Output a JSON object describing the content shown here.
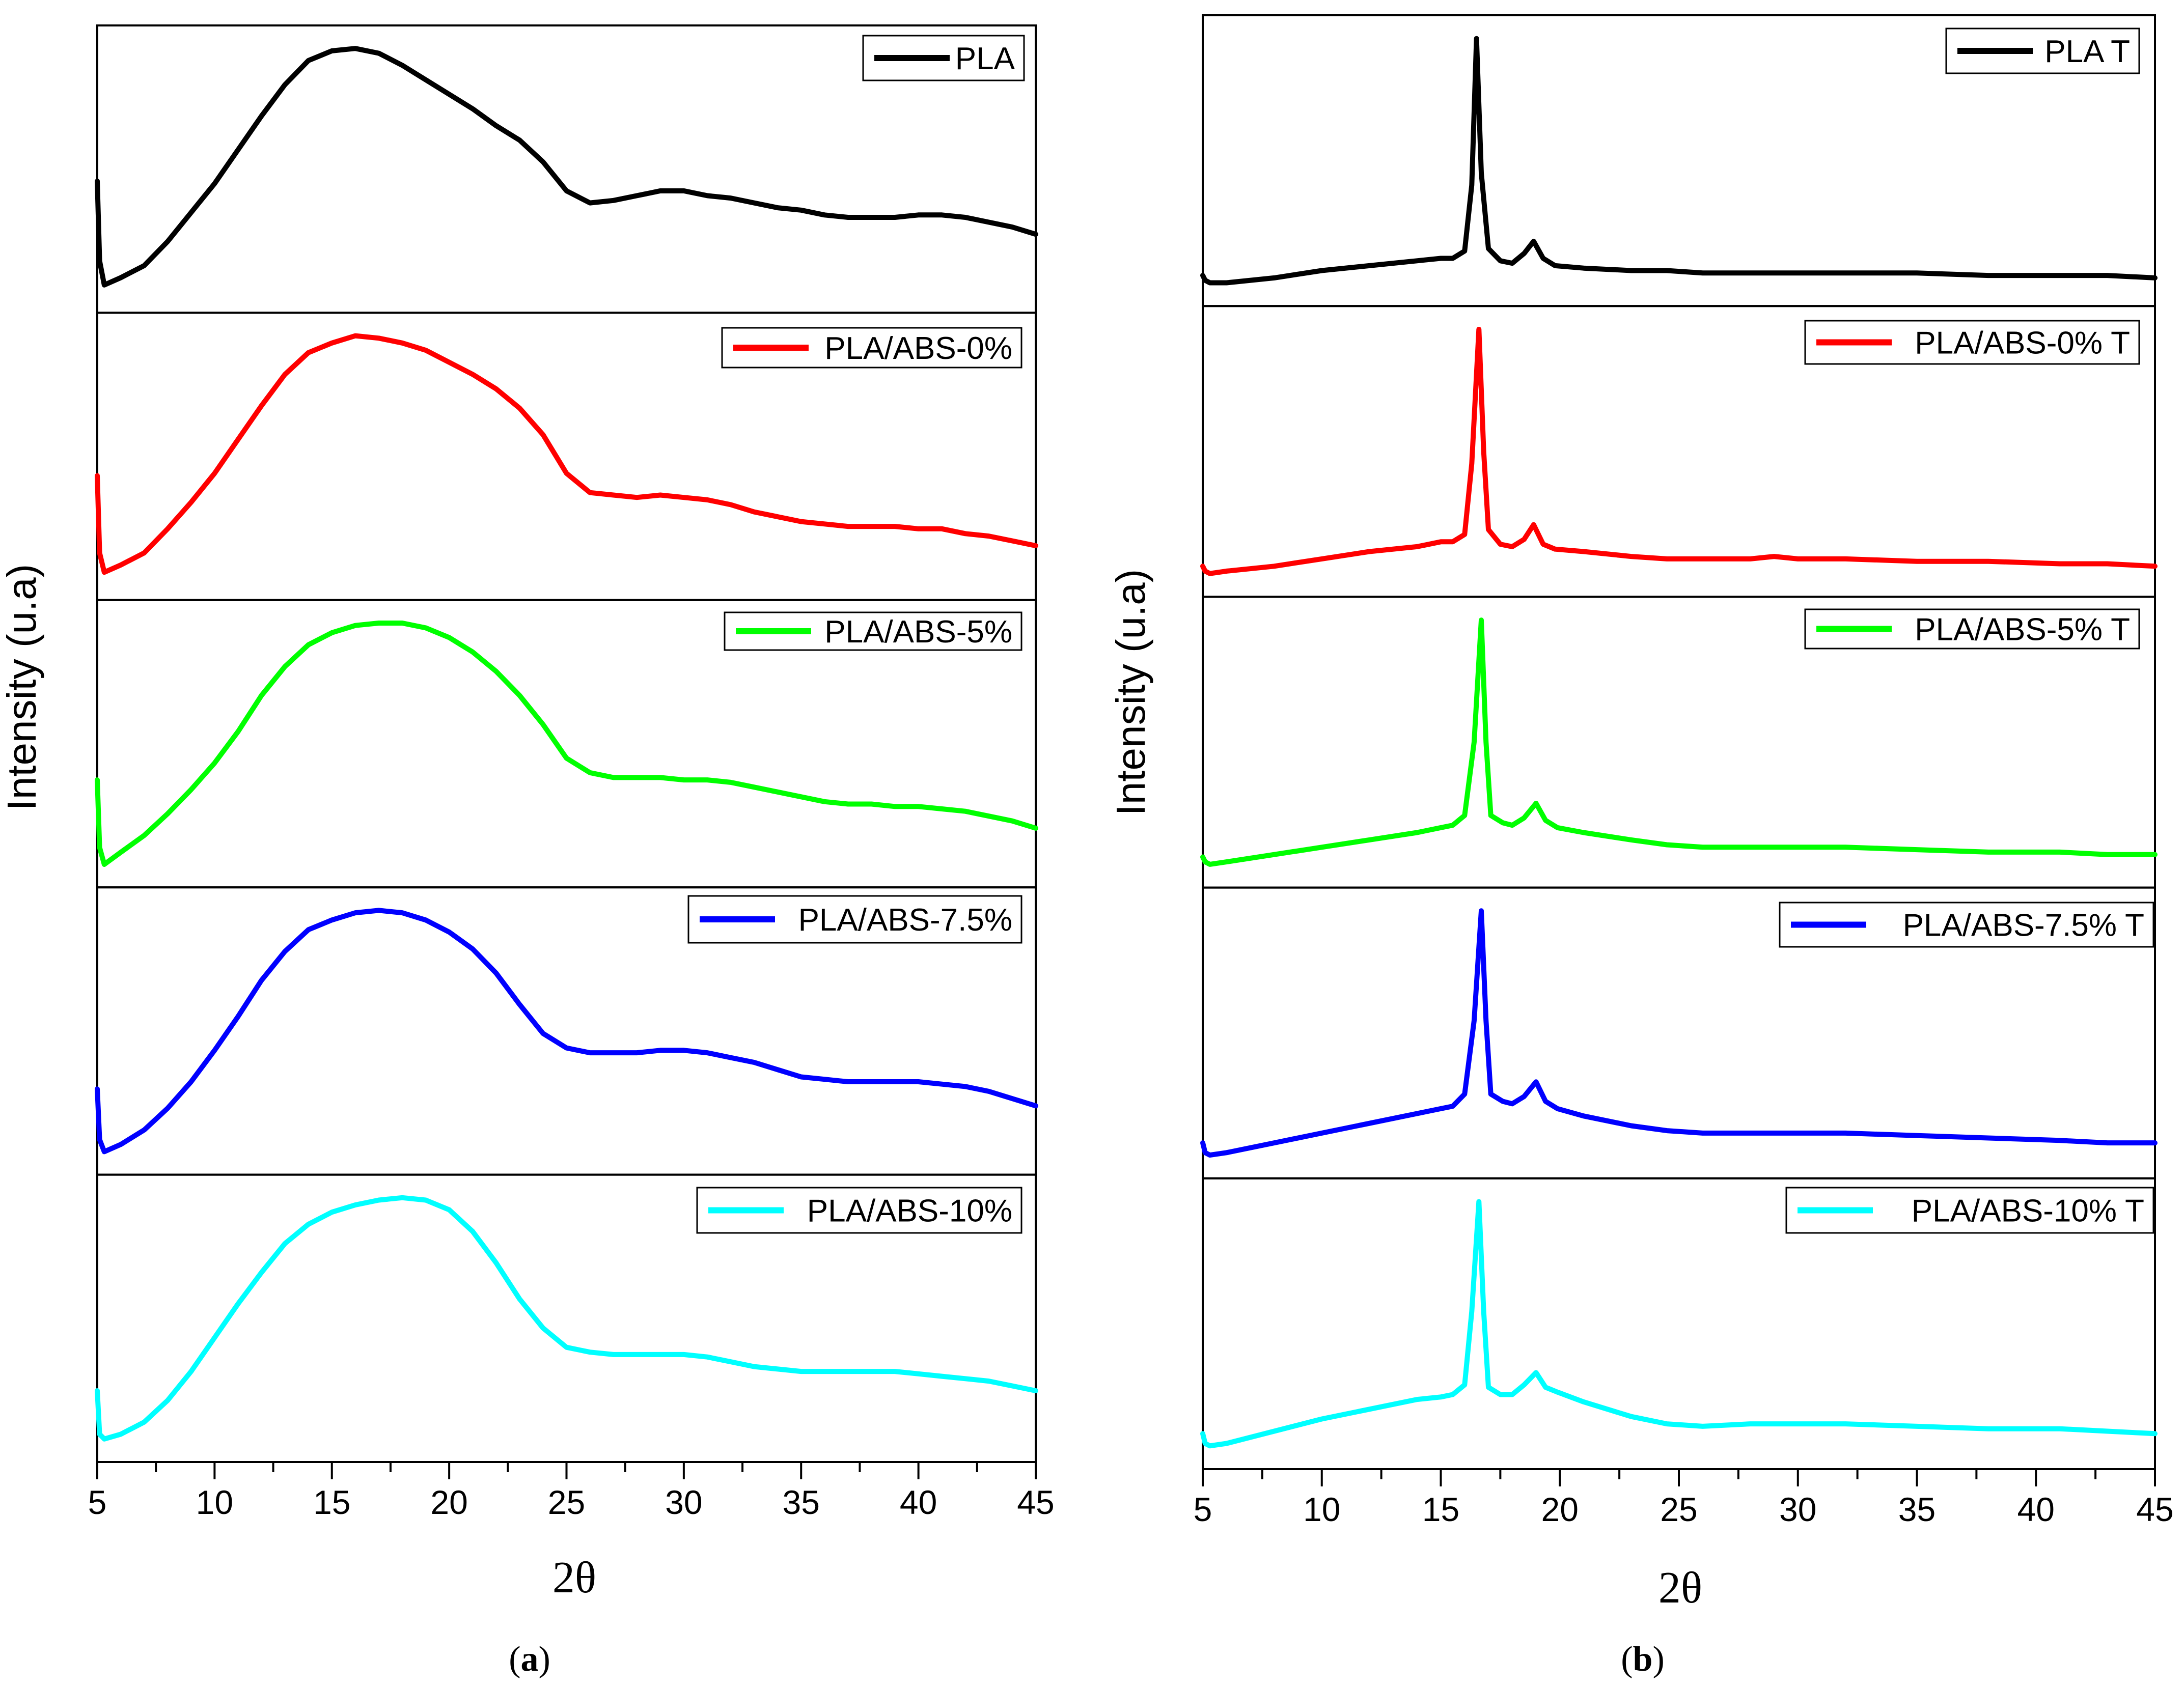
{
  "chart_data": [
    {
      "type": "line",
      "panel_id": "a",
      "panel_label": "(a)",
      "panel_label_letter": "a",
      "xlabel": "2θ",
      "ylabel": "Intensity (u.a)",
      "xlim": [
        5,
        45
      ],
      "xticks": [
        5,
        10,
        15,
        20,
        25,
        30,
        35,
        40,
        45
      ],
      "tick_labels": [
        "5",
        "10",
        "15",
        "20",
        "25",
        "30",
        "35",
        "40",
        "45"
      ],
      "minor_tick_step": 2.5,
      "legend_position": "top-right of each stacked sub-panel",
      "series": [
        {
          "name": "PLA",
          "color": "#000000",
          "x": [
            5.0,
            5.1,
            5.3,
            6.0,
            7.0,
            8.0,
            9.0,
            10.0,
            11.0,
            12.0,
            13.0,
            14.0,
            15.0,
            16.0,
            17.0,
            18.0,
            19.0,
            20.0,
            21.0,
            22.0,
            23.0,
            24.0,
            25.0,
            26.0,
            27.0,
            28.0,
            29.0,
            30.0,
            31.0,
            32.0,
            33.0,
            34.0,
            35.0,
            36.0,
            37.0,
            38.0,
            39.0,
            40.0,
            41.0,
            42.0,
            43.0,
            44.0,
            45.0
          ],
          "y": [
            0.45,
            0.12,
            0.02,
            0.05,
            0.1,
            0.2,
            0.32,
            0.44,
            0.58,
            0.72,
            0.85,
            0.95,
            0.99,
            1.0,
            0.98,
            0.93,
            0.87,
            0.81,
            0.75,
            0.68,
            0.62,
            0.53,
            0.41,
            0.36,
            0.37,
            0.39,
            0.41,
            0.41,
            0.39,
            0.38,
            0.36,
            0.34,
            0.33,
            0.31,
            0.3,
            0.3,
            0.3,
            0.31,
            0.31,
            0.3,
            0.28,
            0.26,
            0.23
          ]
        },
        {
          "name": "PLA/ABS-0%",
          "color": "#ff0000",
          "x": [
            5.0,
            5.1,
            5.3,
            6.0,
            7.0,
            8.0,
            9.0,
            10.0,
            11.0,
            12.0,
            13.0,
            14.0,
            15.0,
            16.0,
            17.0,
            18.0,
            19.0,
            20.0,
            21.0,
            22.0,
            23.0,
            24.0,
            25.0,
            26.0,
            27.0,
            28.0,
            29.0,
            30.0,
            31.0,
            32.0,
            33.0,
            34.0,
            35.0,
            36.0,
            37.0,
            38.0,
            39.0,
            40.0,
            41.0,
            42.0,
            43.0,
            44.0,
            45.0
          ],
          "y": [
            0.42,
            0.1,
            0.02,
            0.05,
            0.1,
            0.2,
            0.31,
            0.43,
            0.57,
            0.71,
            0.84,
            0.93,
            0.97,
            1.0,
            0.99,
            0.97,
            0.94,
            0.89,
            0.84,
            0.78,
            0.7,
            0.59,
            0.43,
            0.35,
            0.34,
            0.33,
            0.34,
            0.33,
            0.32,
            0.3,
            0.27,
            0.25,
            0.23,
            0.22,
            0.21,
            0.21,
            0.21,
            0.2,
            0.2,
            0.18,
            0.17,
            0.15,
            0.13
          ]
        },
        {
          "name": "PLA/ABS-5%",
          "color": "#00ff00",
          "x": [
            5.0,
            5.1,
            5.3,
            6.0,
            7.0,
            8.0,
            9.0,
            10.0,
            11.0,
            12.0,
            13.0,
            14.0,
            15.0,
            16.0,
            17.0,
            18.0,
            19.0,
            20.0,
            21.0,
            22.0,
            23.0,
            24.0,
            25.0,
            26.0,
            27.0,
            28.0,
            29.0,
            30.0,
            31.0,
            32.0,
            33.0,
            34.0,
            35.0,
            36.0,
            37.0,
            38.0,
            39.0,
            40.0,
            41.0,
            42.0,
            43.0,
            44.0,
            45.0
          ],
          "y": [
            0.35,
            0.07,
            0.0,
            0.05,
            0.12,
            0.21,
            0.31,
            0.42,
            0.55,
            0.7,
            0.82,
            0.91,
            0.96,
            0.99,
            1.0,
            1.0,
            0.98,
            0.94,
            0.88,
            0.8,
            0.7,
            0.58,
            0.44,
            0.38,
            0.36,
            0.36,
            0.36,
            0.35,
            0.35,
            0.34,
            0.32,
            0.3,
            0.28,
            0.26,
            0.25,
            0.25,
            0.24,
            0.24,
            0.23,
            0.22,
            0.2,
            0.18,
            0.15
          ]
        },
        {
          "name": "PLA/ABS-7.5%",
          "color": "#0000ff",
          "x": [
            5.0,
            5.1,
            5.3,
            6.0,
            7.0,
            8.0,
            9.0,
            10.0,
            11.0,
            12.0,
            13.0,
            14.0,
            15.0,
            16.0,
            17.0,
            18.0,
            19.0,
            20.0,
            21.0,
            22.0,
            23.0,
            24.0,
            25.0,
            26.0,
            27.0,
            28.0,
            29.0,
            30.0,
            31.0,
            32.0,
            33.0,
            34.0,
            35.0,
            36.0,
            37.0,
            38.0,
            39.0,
            40.0,
            41.0,
            42.0,
            43.0,
            44.0,
            45.0
          ],
          "y": [
            0.26,
            0.05,
            0.0,
            0.03,
            0.09,
            0.18,
            0.29,
            0.42,
            0.56,
            0.71,
            0.83,
            0.92,
            0.96,
            0.99,
            1.0,
            0.99,
            0.96,
            0.91,
            0.84,
            0.74,
            0.61,
            0.49,
            0.43,
            0.41,
            0.41,
            0.41,
            0.42,
            0.42,
            0.41,
            0.39,
            0.37,
            0.34,
            0.31,
            0.3,
            0.29,
            0.29,
            0.29,
            0.29,
            0.28,
            0.27,
            0.25,
            0.22,
            0.19
          ]
        },
        {
          "name": "PLA/ABS-10%",
          "color": "#00ffff",
          "x": [
            5.0,
            5.1,
            5.3,
            6.0,
            7.0,
            8.0,
            9.0,
            10.0,
            11.0,
            12.0,
            13.0,
            14.0,
            15.0,
            16.0,
            17.0,
            18.0,
            19.0,
            20.0,
            21.0,
            22.0,
            23.0,
            24.0,
            25.0,
            26.0,
            27.0,
            28.0,
            29.0,
            30.0,
            31.0,
            32.0,
            33.0,
            34.0,
            35.0,
            36.0,
            37.0,
            38.0,
            39.0,
            40.0,
            41.0,
            42.0,
            43.0,
            44.0,
            45.0
          ],
          "y": [
            0.2,
            0.02,
            0.0,
            0.02,
            0.07,
            0.16,
            0.28,
            0.42,
            0.56,
            0.69,
            0.81,
            0.89,
            0.94,
            0.97,
            0.99,
            1.0,
            0.99,
            0.95,
            0.86,
            0.73,
            0.58,
            0.46,
            0.38,
            0.36,
            0.35,
            0.35,
            0.35,
            0.35,
            0.34,
            0.32,
            0.3,
            0.29,
            0.28,
            0.28,
            0.28,
            0.28,
            0.28,
            0.27,
            0.26,
            0.25,
            0.24,
            0.22,
            0.2
          ]
        }
      ]
    },
    {
      "type": "line",
      "panel_id": "b",
      "panel_label": "(b)",
      "panel_label_letter": "b",
      "xlabel": "2θ",
      "ylabel": "Intensity (u.a)",
      "xlim": [
        5,
        45
      ],
      "xticks": [
        5,
        10,
        15,
        20,
        25,
        30,
        35,
        40,
        45
      ],
      "tick_labels": [
        "5",
        "10",
        "15",
        "20",
        "25",
        "30",
        "35",
        "40",
        "45"
      ],
      "minor_tick_step": 2.5,
      "legend_position": "top-right of each stacked sub-panel",
      "series": [
        {
          "name": "PLA T",
          "color": "#000000",
          "x": [
            5.0,
            5.1,
            5.3,
            6.0,
            8.0,
            10.0,
            12.0,
            14.0,
            15.0,
            15.5,
            16.0,
            16.3,
            16.5,
            16.7,
            17.0,
            17.5,
            18.0,
            18.5,
            18.9,
            19.3,
            19.8,
            21.0,
            23.0,
            24.5,
            26.0,
            28.0,
            29.0,
            30.0,
            32.0,
            35.0,
            38.0,
            41.0,
            43.0,
            45.0
          ],
          "y": [
            0.03,
            0.01,
            0.0,
            0.0,
            0.02,
            0.05,
            0.07,
            0.09,
            0.1,
            0.1,
            0.13,
            0.4,
            1.0,
            0.45,
            0.14,
            0.09,
            0.08,
            0.12,
            0.17,
            0.1,
            0.07,
            0.06,
            0.05,
            0.05,
            0.04,
            0.04,
            0.04,
            0.04,
            0.04,
            0.04,
            0.03,
            0.03,
            0.03,
            0.02
          ]
        },
        {
          "name": "PLA/ABS-0% T",
          "color": "#ff0000",
          "x": [
            5.0,
            5.1,
            5.3,
            6.0,
            8.0,
            10.0,
            12.0,
            14.0,
            15.0,
            15.5,
            16.0,
            16.3,
            16.6,
            16.8,
            17.0,
            17.5,
            18.0,
            18.5,
            18.9,
            19.3,
            19.8,
            21.0,
            23.0,
            24.5,
            26.0,
            28.0,
            29.0,
            30.0,
            32.0,
            35.0,
            38.0,
            41.0,
            43.0,
            45.0
          ],
          "y": [
            0.03,
            0.01,
            0.0,
            0.01,
            0.03,
            0.06,
            0.09,
            0.11,
            0.13,
            0.13,
            0.16,
            0.45,
            1.0,
            0.5,
            0.18,
            0.12,
            0.11,
            0.14,
            0.2,
            0.12,
            0.1,
            0.09,
            0.07,
            0.06,
            0.06,
            0.06,
            0.07,
            0.06,
            0.06,
            0.05,
            0.05,
            0.04,
            0.04,
            0.03
          ]
        },
        {
          "name": "PLA/ABS-5% T",
          "color": "#00ff00",
          "x": [
            5.0,
            5.1,
            5.3,
            6.0,
            8.0,
            10.0,
            12.0,
            14.0,
            15.0,
            15.5,
            16.0,
            16.4,
            16.7,
            16.9,
            17.1,
            17.6,
            18.0,
            18.5,
            19.0,
            19.4,
            19.9,
            21.0,
            23.0,
            24.5,
            26.0,
            28.0,
            29.0,
            30.0,
            32.0,
            35.0,
            38.0,
            41.0,
            43.0,
            45.0
          ],
          "y": [
            0.03,
            0.01,
            0.0,
            0.01,
            0.04,
            0.07,
            0.1,
            0.13,
            0.15,
            0.16,
            0.2,
            0.5,
            1.0,
            0.5,
            0.2,
            0.17,
            0.16,
            0.19,
            0.25,
            0.18,
            0.15,
            0.13,
            0.1,
            0.08,
            0.07,
            0.07,
            0.07,
            0.07,
            0.07,
            0.06,
            0.05,
            0.05,
            0.04,
            0.04
          ]
        },
        {
          "name": "PLA/ABS-7.5% T",
          "color": "#0000ff",
          "x": [
            5.0,
            5.1,
            5.3,
            6.0,
            8.0,
            10.0,
            12.0,
            14.0,
            15.0,
            15.5,
            16.0,
            16.4,
            16.7,
            16.9,
            17.1,
            17.6,
            18.0,
            18.5,
            19.0,
            19.4,
            19.9,
            21.0,
            23.0,
            24.5,
            26.0,
            28.0,
            29.0,
            30.0,
            32.0,
            35.0,
            38.0,
            41.0,
            43.0,
            45.0
          ],
          "y": [
            0.05,
            0.01,
            0.0,
            0.01,
            0.05,
            0.09,
            0.13,
            0.17,
            0.19,
            0.2,
            0.25,
            0.55,
            1.0,
            0.55,
            0.25,
            0.22,
            0.21,
            0.24,
            0.3,
            0.22,
            0.19,
            0.16,
            0.12,
            0.1,
            0.09,
            0.09,
            0.09,
            0.09,
            0.09,
            0.08,
            0.07,
            0.06,
            0.05,
            0.05
          ]
        },
        {
          "name": "PLA/ABS-10% T",
          "color": "#00ffff",
          "x": [
            5.0,
            5.1,
            5.3,
            6.0,
            8.0,
            10.0,
            12.0,
            14.0,
            15.0,
            15.5,
            16.0,
            16.3,
            16.6,
            16.8,
            17.0,
            17.5,
            18.0,
            18.5,
            19.0,
            19.4,
            19.9,
            21.0,
            23.0,
            24.5,
            26.0,
            28.0,
            29.0,
            30.0,
            32.0,
            35.0,
            38.0,
            41.0,
            43.0,
            45.0
          ],
          "y": [
            0.05,
            0.01,
            0.0,
            0.01,
            0.06,
            0.11,
            0.15,
            0.19,
            0.2,
            0.21,
            0.25,
            0.55,
            1.0,
            0.55,
            0.24,
            0.21,
            0.21,
            0.25,
            0.3,
            0.24,
            0.22,
            0.18,
            0.12,
            0.09,
            0.08,
            0.09,
            0.09,
            0.09,
            0.09,
            0.08,
            0.07,
            0.07,
            0.06,
            0.05
          ]
        }
      ]
    }
  ]
}
